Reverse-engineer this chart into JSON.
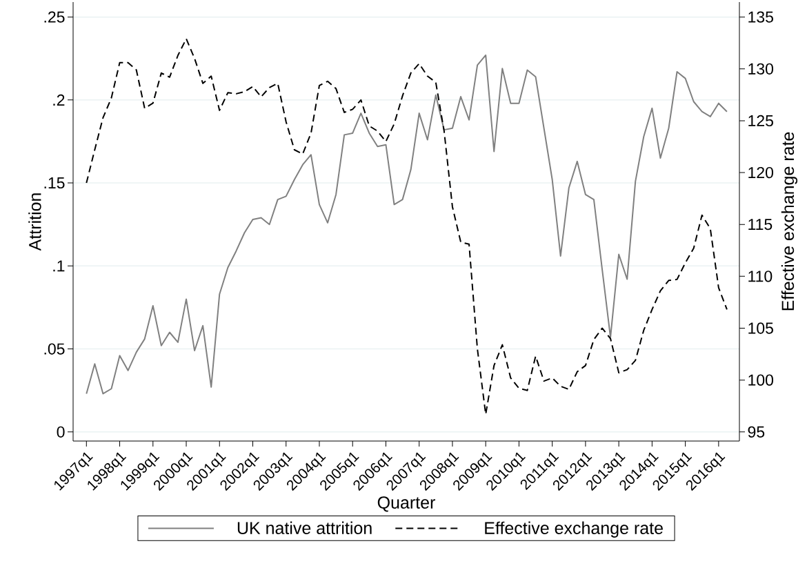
{
  "chart_data": {
    "type": "line",
    "xlabel": "Quarter",
    "ylabel": "Attrition",
    "y2label": "Effective exchange rate",
    "categories": [
      "1997q1",
      null,
      null,
      null,
      "1998q1",
      null,
      null,
      null,
      "1999q1",
      null,
      null,
      null,
      "2000q1",
      null,
      null,
      null,
      "2001q1",
      null,
      null,
      null,
      "2002q1",
      null,
      null,
      null,
      "2003q1",
      null,
      null,
      null,
      "2004q1",
      null,
      null,
      null,
      "2005q1",
      null,
      null,
      null,
      "2006q1",
      null,
      null,
      null,
      "2007q1",
      null,
      null,
      null,
      "2008q1",
      null,
      null,
      null,
      "2009q1",
      null,
      null,
      null,
      "2010q1",
      null,
      null,
      null,
      "2011q1",
      null,
      null,
      null,
      "2012q1",
      null,
      null,
      null,
      "2013q1",
      null,
      null,
      null,
      "2014q1",
      null,
      null,
      null,
      "2015q1",
      null,
      null,
      null,
      "2016q1",
      null
    ],
    "series": [
      {
        "name": "UK native attrition",
        "color": "#808080",
        "line_style": "solid",
        "values": [
          0.023,
          0.041,
          0.023,
          0.026,
          0.046,
          0.037,
          0.048,
          0.056,
          0.076,
          0.052,
          0.06,
          0.054,
          0.08,
          0.049,
          0.064,
          0.027,
          0.083,
          0.099,
          0.109,
          0.12,
          0.128,
          0.129,
          0.125,
          0.14,
          0.142,
          0.152,
          0.161,
          0.167,
          0.137,
          0.126,
          0.143,
          0.179,
          0.18,
          0.192,
          0.18,
          0.172,
          0.173,
          0.137,
          0.14,
          0.158,
          0.192,
          0.176,
          0.203,
          0.182,
          0.183,
          0.202,
          0.188,
          0.221,
          0.227,
          0.169,
          0.219,
          0.198,
          0.198,
          0.218,
          0.214,
          0.183,
          0.152,
          0.106,
          0.147,
          0.163,
          0.143,
          0.14,
          0.098,
          0.057,
          0.107,
          0.092,
          0.151,
          0.178,
          0.195,
          0.165,
          0.183,
          0.217,
          0.213,
          0.199,
          0.193,
          0.19,
          0.198,
          0.193
        ]
      },
      {
        "name": "Effective exchange rate",
        "color": "#000000",
        "line_style": "dashed",
        "axis": "y2",
        "values": [
          119.0,
          122.2,
          125.3,
          127.2,
          130.6,
          130.6,
          129.9,
          126.2,
          126.7,
          129.6,
          129.2,
          131.3,
          132.9,
          131.0,
          128.6,
          129.3,
          126.0,
          127.7,
          127.6,
          127.8,
          128.3,
          127.3,
          128.2,
          128.6,
          124.9,
          122.2,
          121.8,
          123.8,
          128.4,
          128.8,
          128.1,
          125.8,
          126.1,
          127.0,
          124.5,
          124.0,
          123.0,
          124.7,
          127.4,
          129.6,
          130.5,
          129.3,
          128.7,
          124.0,
          116.7,
          113.3,
          113.1,
          103.0,
          96.7,
          101.4,
          103.4,
          100.2,
          99.2,
          99.0,
          102.3,
          99.9,
          100.2,
          99.4,
          99.1,
          100.8,
          101.4,
          103.9,
          105.0,
          104.0,
          100.7,
          101.0,
          101.9,
          104.8,
          106.8,
          108.6,
          109.6,
          109.7,
          111.3,
          112.7,
          115.9,
          114.6,
          108.9,
          106.8
        ]
      }
    ],
    "ylim": [
      -0.0055,
      0.259
    ],
    "yticks": [
      0,
      {
        "value": 0.05,
        "label": ".05"
      },
      {
        "value": 0.1,
        "label": ".1"
      },
      {
        "value": 0.15,
        "label": ".15"
      },
      {
        "value": 0.2,
        "label": ".2"
      },
      {
        "value": 0.25,
        "label": ".25"
      }
    ],
    "y2lim": [
      94.12,
      136.44
    ],
    "y2ticks": [
      95,
      100,
      105,
      110,
      115,
      120,
      125,
      130,
      135
    ],
    "grid": "y",
    "legend": "bottom",
    "marker": "none"
  }
}
